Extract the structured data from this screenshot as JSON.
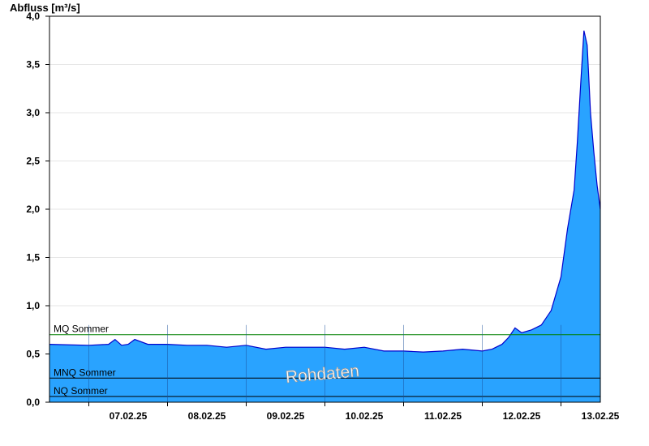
{
  "chart_data": {
    "type": "area",
    "ylabel": "Abfluss [m³/s]",
    "ylim": [
      0,
      4.0
    ],
    "yticks": [
      "0,0",
      "0,5",
      "1,0",
      "1,5",
      "2,0",
      "2,5",
      "3,0",
      "3,5",
      "4,0"
    ],
    "yticks_values": [
      0,
      0.5,
      1.0,
      1.5,
      2.0,
      2.5,
      3.0,
      3.5,
      4.0
    ],
    "xticks": [
      "07.02.25",
      "08.02.25",
      "09.02.25",
      "10.02.25",
      "11.02.25",
      "12.02.25",
      "13.02.25"
    ],
    "xlim_days": [
      6.5,
      13.5
    ],
    "grid": true,
    "watermark": "Rohdaten",
    "fill_color": "#29a3ff",
    "line_color": "#0000cc",
    "reference_lines": [
      {
        "label": "MQ Sommer",
        "value": 0.7,
        "color": "#008000"
      },
      {
        "label": "MNQ Sommer",
        "value": 0.25,
        "color": "#000000"
      },
      {
        "label": "NQ Sommer",
        "value": 0.06,
        "color": "#000000"
      }
    ],
    "series": [
      {
        "x": [
          "06.02.25 12:00",
          "07.02.25 00:00",
          "07.02.25 06:00",
          "07.02.25 08:00",
          "07.02.25 10:00",
          "07.02.25 12:00",
          "07.02.25 14:00",
          "07.02.25 18:00",
          "08.02.25 00:00",
          "08.02.25 06:00",
          "08.02.25 12:00",
          "08.02.25 18:00",
          "09.02.25 00:00",
          "09.02.25 06:00",
          "09.02.25 12:00",
          "09.02.25 18:00",
          "10.02.25 00:00",
          "10.02.25 06:00",
          "10.02.25 12:00",
          "10.02.25 18:00",
          "11.02.25 00:00",
          "11.02.25 06:00",
          "11.02.25 12:00",
          "11.02.25 18:00",
          "12.02.25 00:00",
          "12.02.25 03:00",
          "12.02.25 06:00",
          "12.02.25 08:00",
          "12.02.25 10:00",
          "12.02.25 12:00",
          "12.02.25 15:00",
          "12.02.25 18:00",
          "12.02.25 21:00",
          "13.02.25 00:00",
          "13.02.25 02:00",
          "13.02.25 04:00",
          "13.02.25 05:00",
          "13.02.25 06:00",
          "13.02.25 07:00",
          "13.02.25 08:00",
          "13.02.25 09:00",
          "13.02.25 10:00",
          "13.02.25 11:00",
          "13.02.25 12:00"
        ],
        "values": [
          0.6,
          0.59,
          0.6,
          0.65,
          0.59,
          0.6,
          0.65,
          0.6,
          0.6,
          0.59,
          0.59,
          0.57,
          0.59,
          0.55,
          0.57,
          0.57,
          0.57,
          0.55,
          0.57,
          0.53,
          0.53,
          0.52,
          0.53,
          0.55,
          0.53,
          0.55,
          0.6,
          0.67,
          0.77,
          0.72,
          0.75,
          0.8,
          0.95,
          1.3,
          1.8,
          2.2,
          2.7,
          3.3,
          3.85,
          3.7,
          3.0,
          2.6,
          2.25,
          2.0
        ]
      }
    ]
  }
}
